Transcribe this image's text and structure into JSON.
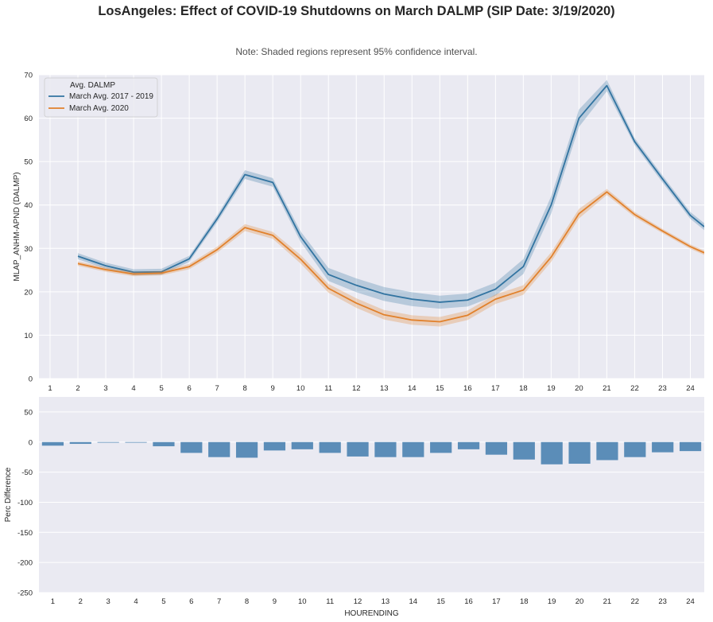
{
  "title": "LosAngeles: Effect of COVID-19 Shutdowns on March DALMP (SIP Date: 3/19/2020)",
  "note": "Note: Shaded regions represent 95% confidence interval.",
  "colors": {
    "background": "#eaeaf2",
    "grid": "#ffffff",
    "series_2017_2019": "#3274a1",
    "series_2020": "#e1812c",
    "bars": "#5b8db8"
  },
  "chart_data": [
    {
      "type": "line",
      "title": "",
      "xlabel": "",
      "ylabel": "MLAP_ANHM-APND (DALMP)",
      "x": [
        1,
        2,
        3,
        4,
        5,
        6,
        7,
        8,
        9,
        10,
        11,
        12,
        13,
        14,
        15,
        16,
        17,
        18,
        19,
        20,
        21,
        22,
        23,
        24
      ],
      "xlim": [
        0.6,
        24.5
      ],
      "ylim": [
        0,
        70
      ],
      "yticks": [
        0,
        10,
        20,
        30,
        40,
        50,
        60,
        70
      ],
      "grid": true,
      "legend": {
        "title": "Avg. DALMP",
        "position": "top-left"
      },
      "series": [
        {
          "name": "March Avg. 2017 - 2019",
          "x": [
            2,
            3,
            4,
            5,
            6,
            7,
            8,
            9,
            10,
            11,
            12,
            13,
            14,
            15,
            16,
            17,
            18,
            19,
            20,
            21,
            22,
            23,
            24,
            24.5
          ],
          "values": [
            28.2,
            26.0,
            24.5,
            24.6,
            27.6,
            36.8,
            47.0,
            45.2,
            32.7,
            24.0,
            21.5,
            19.5,
            18.3,
            17.6,
            18.1,
            20.6,
            25.8,
            40.0,
            60.0,
            67.5,
            54.6,
            46.0,
            37.6,
            35.0
          ],
          "ci_half": [
            0.7,
            0.7,
            0.7,
            0.7,
            0.7,
            0.8,
            1.0,
            1.0,
            1.2,
            1.5,
            1.6,
            1.6,
            1.6,
            1.5,
            1.5,
            1.5,
            1.7,
            2.0,
            2.0,
            1.3,
            0.8,
            0.8,
            0.8,
            0.8
          ]
        },
        {
          "name": "March Avg. 2020",
          "x": [
            2,
            3,
            4,
            5,
            6,
            7,
            8,
            9,
            10,
            11,
            12,
            13,
            14,
            15,
            16,
            17,
            18,
            19,
            20,
            21,
            22,
            23,
            24,
            24.5
          ],
          "values": [
            26.5,
            25.1,
            24.1,
            24.3,
            25.8,
            29.7,
            34.8,
            33.0,
            27.5,
            20.8,
            17.4,
            14.7,
            13.5,
            13.1,
            14.6,
            18.3,
            20.4,
            28.0,
            38.0,
            43.0,
            37.8,
            34.0,
            30.4,
            29.0
          ],
          "ci_half": [
            0.5,
            0.5,
            0.5,
            0.5,
            0.6,
            0.7,
            0.8,
            0.8,
            1.0,
            1.0,
            1.1,
            1.1,
            1.1,
            1.1,
            1.1,
            1.1,
            1.1,
            1.1,
            1.1,
            0.7,
            0.6,
            0.5,
            0.5,
            0.5
          ]
        }
      ]
    },
    {
      "type": "bar",
      "title": "",
      "xlabel": "HOURENDING",
      "ylabel": "Perc Difference",
      "categories": [
        "1",
        "2",
        "3",
        "4",
        "5",
        "6",
        "7",
        "8",
        "9",
        "10",
        "11",
        "12",
        "13",
        "14",
        "15",
        "16",
        "17",
        "18",
        "19",
        "20",
        "21",
        "22",
        "23",
        "24"
      ],
      "values": [
        -6,
        -3,
        -1,
        -1,
        -7,
        -18,
        -25,
        -26,
        -14,
        -12,
        -18,
        -24,
        -25,
        -25,
        -18,
        -12,
        -21,
        -29,
        -37,
        -36,
        -30,
        -25,
        -17,
        -15
      ],
      "ylim": [
        -250,
        75
      ],
      "yticks": [
        50,
        0,
        -50,
        -100,
        -150,
        -200,
        -250
      ],
      "grid": true
    }
  ]
}
